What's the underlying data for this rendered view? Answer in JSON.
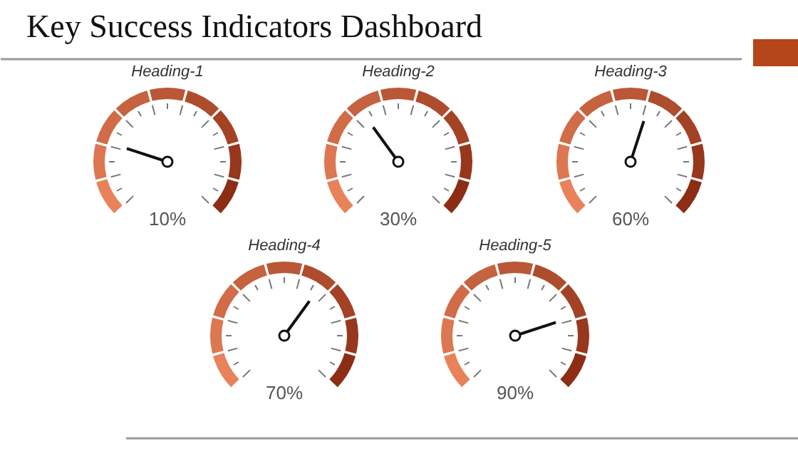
{
  "chart_data": {
    "type": "other",
    "title": "Key Success Indicators Dashboard",
    "categories": [
      "Heading-1",
      "Heading-2",
      "Heading-3",
      "Heading-4",
      "Heading-5"
    ],
    "values": [
      10,
      30,
      60,
      70,
      90
    ],
    "value_labels": [
      "10%",
      "30%",
      "60%",
      "70%",
      "90%"
    ]
  }
}
